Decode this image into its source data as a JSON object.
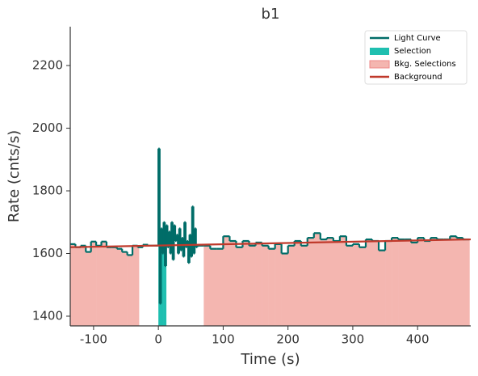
{
  "chart_data": {
    "type": "lightcurve",
    "title": "b1",
    "x_label": "Time (s)",
    "y_label": "Rate (cnts/s)",
    "xlim": [
      -136,
      482
    ],
    "ylim": [
      1369,
      2324
    ],
    "xticks": [
      -100,
      0,
      100,
      200,
      300,
      400
    ],
    "yticks": [
      1400,
      1600,
      1800,
      2000,
      2200
    ],
    "legend_position": "upper right",
    "light_curve": {
      "name": "Light Curve",
      "color": "#006d68",
      "bins": [
        -136,
        -128,
        -120,
        -112,
        -104,
        -96,
        -88,
        -80,
        -72,
        -64,
        -56,
        -48,
        -40,
        -32,
        -24,
        -16,
        -8,
        0,
        2,
        4,
        6,
        8,
        10,
        12,
        14,
        16,
        18,
        20,
        22,
        24,
        26,
        28,
        30,
        32,
        34,
        36,
        38,
        40,
        42,
        44,
        46,
        48,
        50,
        52,
        54,
        56,
        58,
        60,
        70,
        80,
        90,
        100,
        110,
        120,
        130,
        140,
        150,
        160,
        170,
        180,
        190,
        200,
        210,
        220,
        230,
        240,
        250,
        260,
        270,
        280,
        290,
        300,
        310,
        320,
        330,
        340,
        350,
        360,
        370,
        380,
        390,
        400,
        410,
        420,
        430,
        440,
        450,
        460,
        470,
        480
      ],
      "values": [
        1630,
        1620,
        1625,
        1605,
        1638,
        1625,
        1638,
        1620,
        1620,
        1615,
        1605,
        1595,
        1625,
        1620,
        1628,
        1625,
        1625,
        1935,
        1440,
        1680,
        1600,
        1700,
        1560,
        1690,
        1620,
        1670,
        1600,
        1700,
        1580,
        1690,
        1640,
        1660,
        1600,
        1680,
        1610,
        1650,
        1590,
        1700,
        1620,
        1640,
        1570,
        1660,
        1590,
        1750,
        1600,
        1680,
        1620,
        1625,
        1625,
        1615,
        1615,
        1655,
        1640,
        1620,
        1640,
        1625,
        1635,
        1625,
        1615,
        1630,
        1600,
        1625,
        1640,
        1625,
        1650,
        1665,
        1645,
        1650,
        1640,
        1655,
        1625,
        1630,
        1620,
        1645,
        1640,
        1610,
        1640,
        1650,
        1645,
        1645,
        1635,
        1650,
        1640,
        1650,
        1645,
        1645,
        1655,
        1650,
        1645
      ]
    },
    "selection": {
      "name": "Selection",
      "color": "#1fbfb0",
      "range": [
        0,
        12
      ]
    },
    "bkg_selections": {
      "name": "Bkg. Selections",
      "color": "#f4b6b0",
      "ranges": [
        [
          -136,
          -30
        ],
        [
          70,
          482
        ]
      ]
    },
    "background": {
      "name": "Background",
      "color": "#c0392b",
      "x": [
        -136,
        482
      ],
      "values": [
        1620,
        1645
      ]
    }
  }
}
